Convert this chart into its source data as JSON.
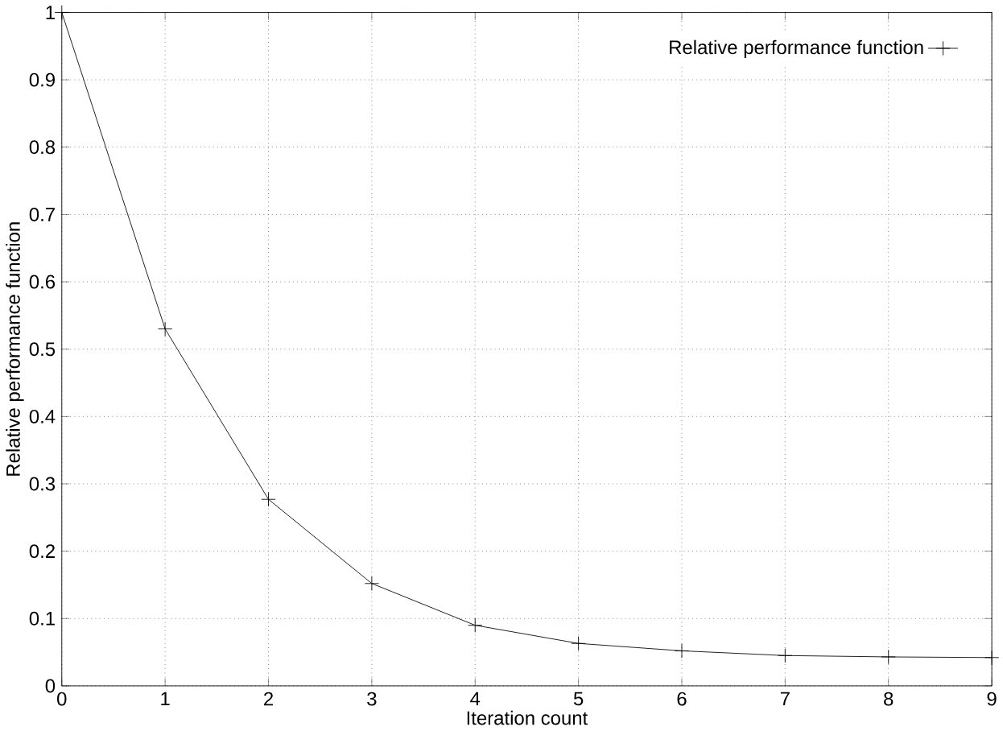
{
  "chart_data": {
    "type": "line",
    "xlabel": "Iteration count",
    "ylabel": "Relative performance function",
    "x": [
      0,
      1,
      2,
      3,
      4,
      5,
      6,
      7,
      8,
      9
    ],
    "series": [
      {
        "name": "Relative performance function",
        "color": "#000000",
        "values": [
          1,
          0.53,
          0.277,
          0.152,
          0.09,
          0.063,
          0.052,
          0.045,
          0.043,
          0.042
        ]
      }
    ],
    "xlim": [
      0,
      9
    ],
    "ylim": [
      0,
      1
    ],
    "xticks": [
      0,
      1,
      2,
      3,
      4,
      5,
      6,
      7,
      8,
      9
    ],
    "yticks": [
      0,
      0.1,
      0.2,
      0.3,
      0.4,
      0.5,
      0.6,
      0.7,
      0.8,
      0.9,
      1
    ],
    "grid": true,
    "legend": "top right",
    "marker": "cross",
    "line_style": "solid"
  }
}
